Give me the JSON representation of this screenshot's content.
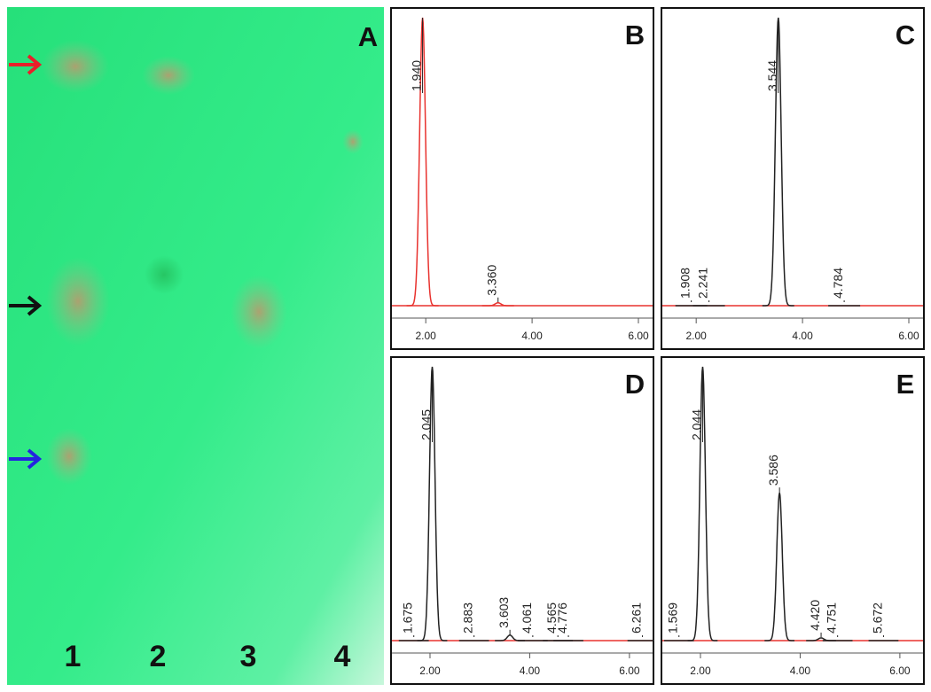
{
  "tlc_plate": {
    "label": "A",
    "lanes": [
      "1",
      "2",
      "3",
      "4"
    ]
  },
  "chromatograms": [
    {
      "label": "B",
      "color": "#e8322e",
      "xlim": [
        1.33,
        6.3
      ],
      "xticks": [
        {
          "value": 2,
          "label": "2.00"
        },
        {
          "value": 4,
          "label": "4.00"
        },
        {
          "value": 6,
          "label": "6.00"
        }
      ],
      "peaks": [
        {
          "rt": 1.94,
          "label": "1.940",
          "height": 100
        },
        {
          "rt": 3.36,
          "label": "3.360",
          "height": 1
        }
      ]
    },
    {
      "label": "C",
      "color": "#222222",
      "xlim": [
        1.33,
        6.3
      ],
      "xticks": [
        {
          "value": 2,
          "label": "2.00"
        },
        {
          "value": 4,
          "label": "4.00"
        },
        {
          "value": 6,
          "label": "6.00"
        }
      ],
      "peaks": [
        {
          "rt": 1.908,
          "label": "1.908",
          "height": 0
        },
        {
          "rt": 2.241,
          "label": "2.241",
          "height": 0
        },
        {
          "rt": 3.544,
          "label": "3.544",
          "height": 100
        },
        {
          "rt": 4.784,
          "label": "4.784",
          "height": 0
        }
      ]
    },
    {
      "label": "D",
      "color": "#222222",
      "xlim": [
        1.2,
        6.5
      ],
      "xticks": [
        {
          "value": 2,
          "label": "2.00"
        },
        {
          "value": 4,
          "label": "4.00"
        },
        {
          "value": 6,
          "label": "6.00"
        }
      ],
      "peaks": [
        {
          "rt": 1.675,
          "label": "1.675",
          "height": 0
        },
        {
          "rt": 2.045,
          "label": "2.045",
          "height": 100
        },
        {
          "rt": 2.883,
          "label": "2.883",
          "height": 0
        },
        {
          "rt": 3.603,
          "label": "3.603",
          "height": 2
        },
        {
          "rt": 4.061,
          "label": "4.061",
          "height": 0
        },
        {
          "rt": 4.565,
          "label": "4.565",
          "height": 0
        },
        {
          "rt": 4.776,
          "label": "4.776",
          "height": 0
        },
        {
          "rt": 6.261,
          "label": "6.261",
          "height": 0
        }
      ]
    },
    {
      "label": "E",
      "color": "#222222",
      "xlim": [
        1.2,
        6.5
      ],
      "xticks": [
        {
          "value": 2,
          "label": "2.00"
        },
        {
          "value": 4,
          "label": "4.00"
        },
        {
          "value": 6,
          "label": "6.00"
        }
      ],
      "peaks": [
        {
          "rt": 1.569,
          "label": "1.569",
          "height": 0
        },
        {
          "rt": 2.044,
          "label": "2.044",
          "height": 100
        },
        {
          "rt": 3.586,
          "label": "3.586",
          "height": 54
        },
        {
          "rt": 4.42,
          "label": "4.420",
          "height": 1
        },
        {
          "rt": 4.751,
          "label": "4.751",
          "height": 0
        },
        {
          "rt": 5.672,
          "label": "5.672",
          "height": 0
        }
      ]
    }
  ]
}
